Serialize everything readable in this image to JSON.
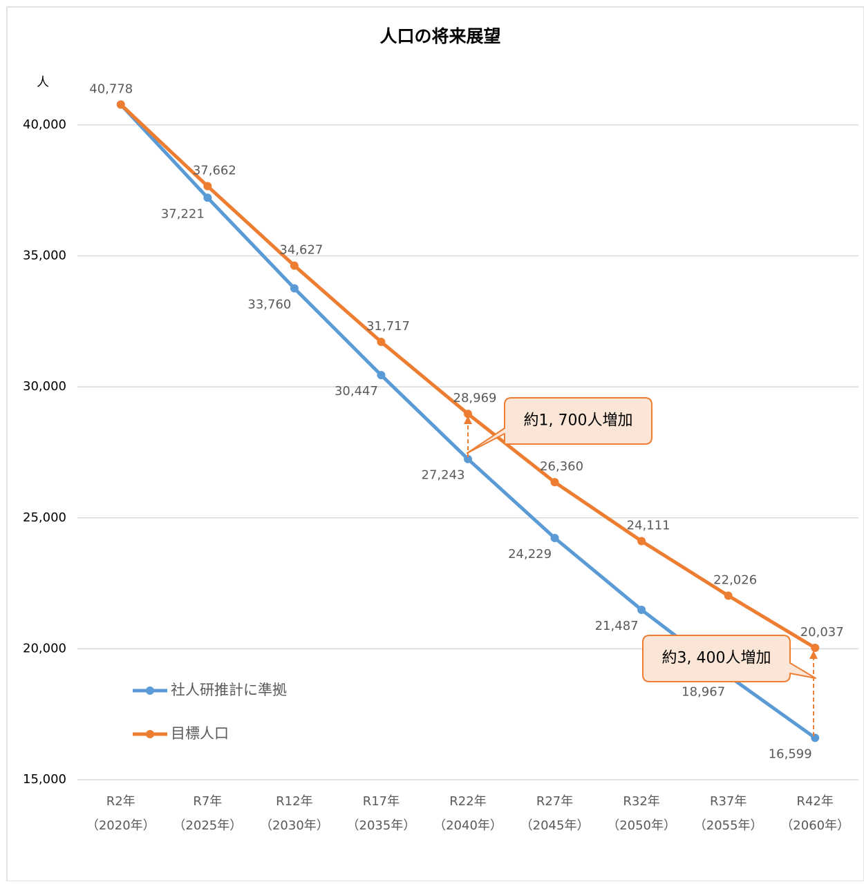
{
  "chart_data": {
    "type": "line",
    "title": "人口の将来展望",
    "y_unit": "人",
    "categories": [
      "R2年",
      "R7年",
      "R12年",
      "R17年",
      "R22年",
      "R27年",
      "R32年",
      "R37年",
      "R42年"
    ],
    "category_years": [
      "（2020年）",
      "（2025年）",
      "（2030年）",
      "（2035年）",
      "（2040年）",
      "（2045年）",
      "（2050年）",
      "（2055年）",
      "（2060年）"
    ],
    "series": [
      {
        "name": "社人研推計に準拠",
        "color": "#5b9bd5",
        "values": [
          40778,
          37221,
          33760,
          30447,
          27243,
          24229,
          21487,
          18967,
          16599
        ],
        "value_labels": [
          null,
          "37,221",
          "33,760",
          "30,447",
          "27,243",
          "24,229",
          "21,487",
          "18,967",
          "16,599"
        ]
      },
      {
        "name": "目標人口",
        "color": "#ed7d31",
        "values": [
          40778,
          37662,
          34627,
          31717,
          28969,
          26360,
          24111,
          22026,
          20037
        ],
        "value_labels": [
          "40,778",
          "37,662",
          "34,627",
          "31,717",
          "28,969",
          "26,360",
          "24,111",
          "22,026",
          "20,037"
        ]
      }
    ],
    "ylim": [
      15000,
      41500
    ],
    "yticks": [
      {
        "value": 15000,
        "label": "15,000"
      },
      {
        "value": 20000,
        "label": "20,000"
      },
      {
        "value": 25000,
        "label": "25,000"
      },
      {
        "value": 30000,
        "label": "30,000"
      },
      {
        "value": 35000,
        "label": "35,000"
      },
      {
        "value": 40000,
        "label": "40,000"
      }
    ],
    "grid": true,
    "legend": "lower-left",
    "annotations": [
      "約1, 700人増加",
      "約3, 400人増加"
    ]
  }
}
